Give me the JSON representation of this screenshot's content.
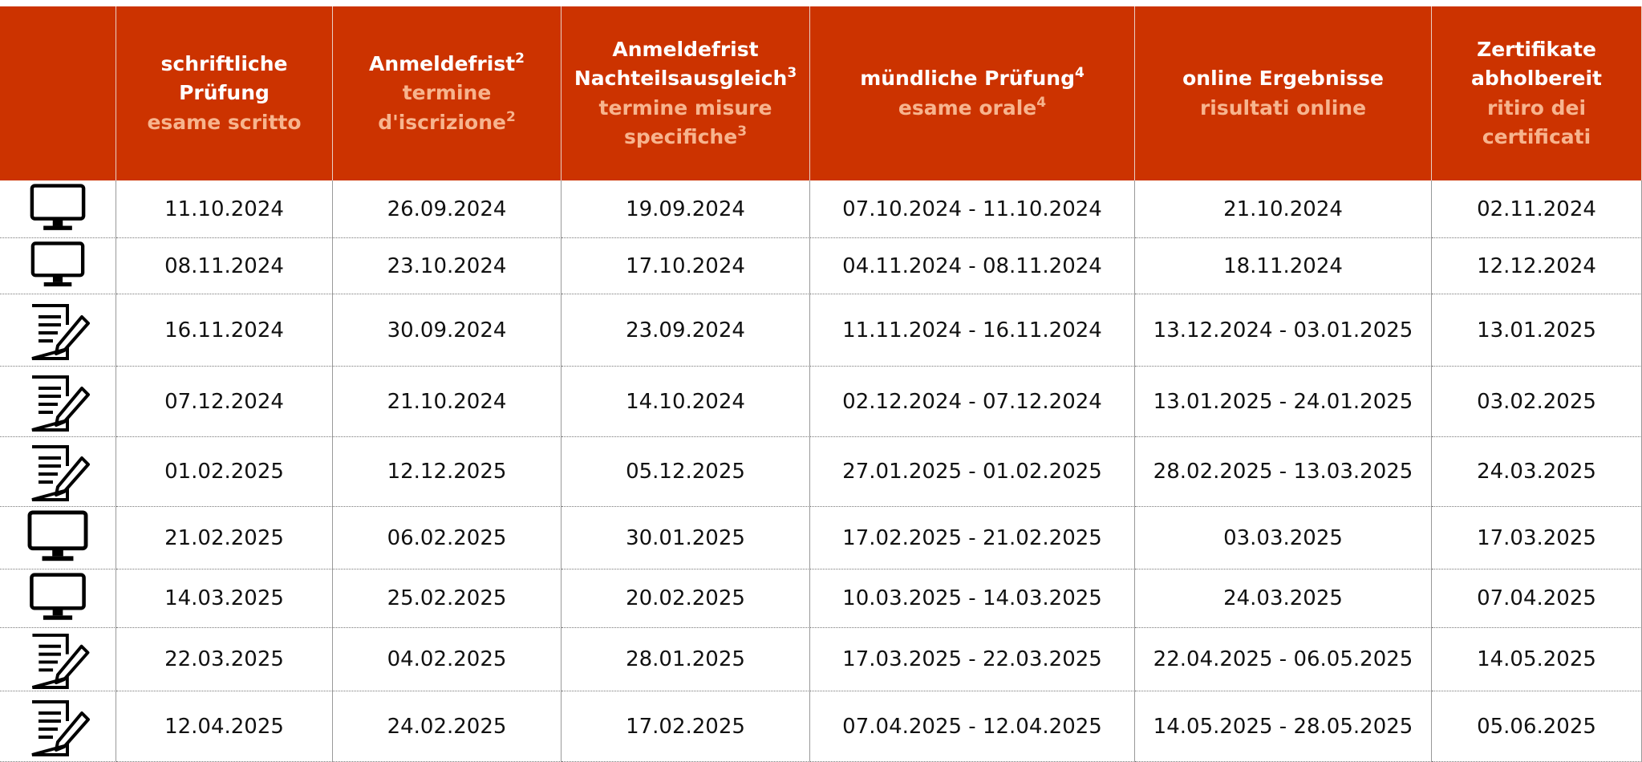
{
  "header": [
    {
      "de": "schriftliche Prüfung",
      "it": "esame scritto"
    },
    {
      "de": "Anmeldefrist",
      "de_sup": "2",
      "it": "termine d'iscrizione",
      "it_sup": "2"
    },
    {
      "de": "Anmeldefrist Nachteilsausgleich",
      "de_sup": "3",
      "it": "termine misure specifiche",
      "it_sup": "3"
    },
    {
      "de": "mündliche Prüfung",
      "de_sup": "4",
      "it": "esame orale",
      "it_sup": "4"
    },
    {
      "de": "online Ergebnisse",
      "it": "risultati online"
    },
    {
      "de": "Zertifikate abholbereit",
      "it": "ritiro dei certificati"
    }
  ],
  "rows": [
    {
      "icon": "computer",
      "cells": [
        "11.10.2024",
        "26.09.2024",
        "19.09.2024",
        "07.10.2024 - 11.10.2024",
        "21.10.2024",
        "02.11.2024"
      ]
    },
    {
      "icon": "computer",
      "cells": [
        "08.11.2024",
        "23.10.2024",
        "17.10.2024",
        "04.11.2024 - 08.11.2024",
        "18.11.2024",
        "12.12.2024"
      ]
    },
    {
      "icon": "paper",
      "cells": [
        "16.11.2024",
        "30.09.2024",
        "23.09.2024",
        "11.11.2024 - 16.11.2024",
        "13.12.2024 - 03.01.2025",
        "13.01.2025"
      ]
    },
    {
      "icon": "paper",
      "cells": [
        "07.12.2024",
        "21.10.2024",
        "14.10.2024",
        "02.12.2024 - 07.12.2024",
        "13.01.2025 - 24.01.2025",
        "03.02.2025"
      ]
    },
    {
      "icon": "paper",
      "cells": [
        "01.02.2025",
        "12.12.2025",
        "05.12.2025",
        "27.01.2025 - 01.02.2025",
        "28.02.2025 - 13.03.2025",
        "24.03.2025"
      ]
    },
    {
      "icon": "computer",
      "cells": [
        "21.02.2025",
        "06.02.2025",
        "30.01.2025",
        "17.02.2025 - 21.02.2025",
        "03.03.2025",
        "17.03.2025"
      ]
    },
    {
      "icon": "computer",
      "cells": [
        "14.03.2025",
        "25.02.2025",
        "20.02.2025",
        "10.03.2025 - 14.03.2025",
        "24.03.2025",
        "07.04.2025"
      ]
    },
    {
      "icon": "paper",
      "cells": [
        "22.03.2025",
        "04.02.2025",
        "28.01.2025",
        "17.03.2025 - 22.03.2025",
        "22.04.2025 - 06.05.2025",
        "14.05.2025"
      ]
    },
    {
      "icon": "paper",
      "cells": [
        "12.04.2025",
        "24.02.2025",
        "17.02.2025",
        "07.04.2025 - 12.04.2025",
        "14.05.2025 - 28.05.2025",
        "05.06.2025"
      ]
    }
  ]
}
